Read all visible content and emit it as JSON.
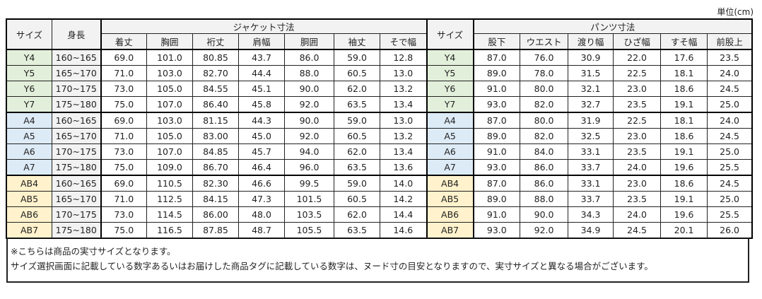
{
  "unit_label": "単位(cm)",
  "header": {
    "size": "サイズ",
    "height": "身長",
    "jacket_group": "ジャケット寸法",
    "pants_group": "パンツ寸法",
    "jacket_cols": [
      "着丈",
      "胸囲",
      "裄丈",
      "肩幅",
      "胴囲",
      "袖丈",
      "そで幅"
    ],
    "pants_size": "サイズ",
    "pants_cols": [
      "股下",
      "ウエスト",
      "渡り幅",
      "ひざ幅",
      "すそ幅",
      "前股上"
    ]
  },
  "group_colors": {
    "Y": "#e2efda",
    "A": "#ddebf7",
    "AB": "#fff2cc"
  },
  "rows": [
    {
      "group": "Y",
      "size": "Y4",
      "height": "160~165",
      "jacket": [
        "69.0",
        "101.0",
        "80.85",
        "43.7",
        "86.0",
        "59.0",
        "12.8"
      ],
      "pants": [
        "87.0",
        "76.0",
        "30.9",
        "22.0",
        "17.6",
        "23.5"
      ]
    },
    {
      "group": "Y",
      "size": "Y5",
      "height": "165~170",
      "jacket": [
        "71.0",
        "103.0",
        "82.70",
        "44.4",
        "88.0",
        "60.5",
        "13.0"
      ],
      "pants": [
        "89.0",
        "78.0",
        "31.5",
        "22.5",
        "18.1",
        "24.0"
      ]
    },
    {
      "group": "Y",
      "size": "Y6",
      "height": "170~175",
      "jacket": [
        "73.0",
        "105.0",
        "84.55",
        "45.1",
        "90.0",
        "62.0",
        "13.2"
      ],
      "pants": [
        "91.0",
        "80.0",
        "32.1",
        "23.0",
        "18.6",
        "24.5"
      ]
    },
    {
      "group": "Y",
      "size": "Y7",
      "height": "175~180",
      "jacket": [
        "75.0",
        "107.0",
        "86.40",
        "45.8",
        "92.0",
        "63.5",
        "13.4"
      ],
      "pants": [
        "93.0",
        "82.0",
        "32.7",
        "23.5",
        "19.1",
        "25.0"
      ]
    },
    {
      "group": "A",
      "size": "A4",
      "height": "160~165",
      "jacket": [
        "69.0",
        "103.0",
        "81.15",
        "44.3",
        "90.0",
        "59.0",
        "13.0"
      ],
      "pants": [
        "87.0",
        "80.0",
        "31.9",
        "22.5",
        "18.1",
        "24.0"
      ]
    },
    {
      "group": "A",
      "size": "A5",
      "height": "165~170",
      "jacket": [
        "71.0",
        "105.0",
        "83.00",
        "45.0",
        "92.0",
        "60.5",
        "13.2"
      ],
      "pants": [
        "89.0",
        "82.0",
        "32.5",
        "23.0",
        "18.6",
        "24.5"
      ]
    },
    {
      "group": "A",
      "size": "A6",
      "height": "170~175",
      "jacket": [
        "73.0",
        "107.0",
        "84.85",
        "45.7",
        "94.0",
        "62.0",
        "13.4"
      ],
      "pants": [
        "91.0",
        "84.0",
        "33.1",
        "23.5",
        "19.1",
        "25.0"
      ]
    },
    {
      "group": "A",
      "size": "A7",
      "height": "175~180",
      "jacket": [
        "75.0",
        "109.0",
        "86.70",
        "46.4",
        "96.0",
        "63.5",
        "13.6"
      ],
      "pants": [
        "93.0",
        "86.0",
        "33.7",
        "24.0",
        "19.6",
        "25.5"
      ]
    },
    {
      "group": "AB",
      "size": "AB4",
      "height": "160~165",
      "jacket": [
        "69.0",
        "110.5",
        "82.30",
        "46.6",
        "99.5",
        "59.0",
        "14.0"
      ],
      "pants": [
        "87.0",
        "86.0",
        "33.1",
        "23.0",
        "18.6",
        "24.5"
      ]
    },
    {
      "group": "AB",
      "size": "AB5",
      "height": "165~170",
      "jacket": [
        "71.0",
        "112.5",
        "84.15",
        "47.3",
        "101.5",
        "60.5",
        "14.2"
      ],
      "pants": [
        "89.0",
        "88.0",
        "33.7",
        "23.5",
        "19.1",
        "25.0"
      ]
    },
    {
      "group": "AB",
      "size": "AB6",
      "height": "170~175",
      "jacket": [
        "73.0",
        "114.5",
        "86.00",
        "48.0",
        "103.5",
        "62.0",
        "14.4"
      ],
      "pants": [
        "91.0",
        "90.0",
        "34.3",
        "24.0",
        "19.6",
        "25.5"
      ]
    },
    {
      "group": "AB",
      "size": "AB7",
      "height": "175~180",
      "jacket": [
        "75.0",
        "116.5",
        "87.85",
        "48.7",
        "105.5",
        "63.5",
        "14.6"
      ],
      "pants": [
        "93.0",
        "92.0",
        "34.9",
        "24.5",
        "20.1",
        "26.0"
      ]
    }
  ],
  "notes": [
    "※こちらは商品の実寸サイズとなります。",
    "サイズ選択画面に記載している数字あるいはお届けした商品タグに記載している数字は、ヌード寸の目安となりますので、実寸サイズと異なる場合がございます。"
  ]
}
